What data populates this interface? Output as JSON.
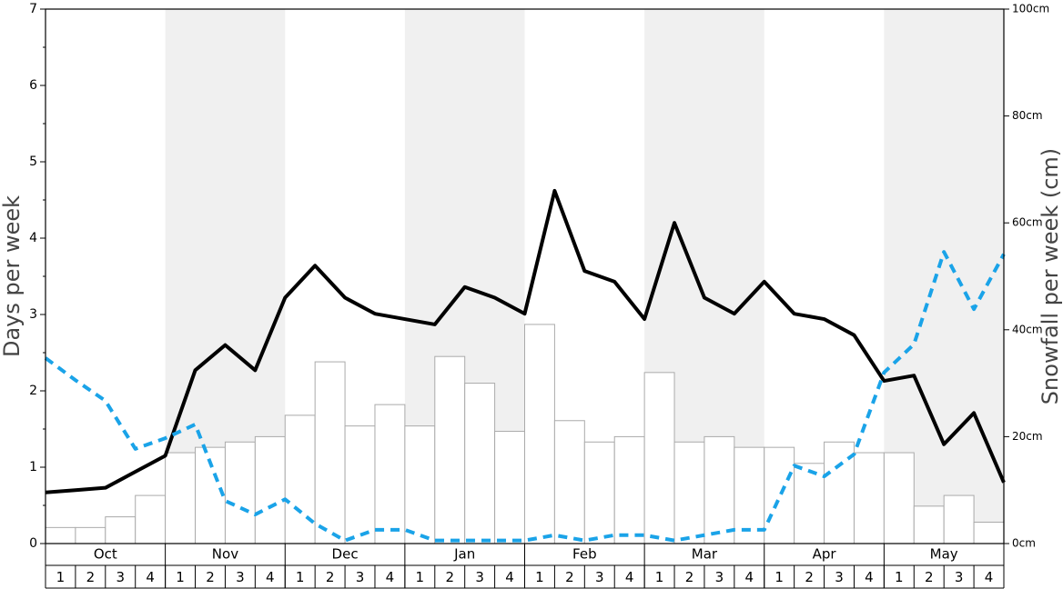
{
  "chart_data": {
    "type": "combo",
    "ylabel": "Days per week",
    "y2label": "Snowfall per week (cm)",
    "ylim": [
      0,
      7
    ],
    "yticks": [
      0,
      1,
      2,
      3,
      4,
      5,
      6,
      7
    ],
    "y2lim": [
      0,
      100
    ],
    "y2ticks": [
      {
        "value": 0,
        "label": "0cm"
      },
      {
        "value": 20,
        "label": "20cm"
      },
      {
        "value": 40,
        "label": "40cm"
      },
      {
        "value": 60,
        "label": "60cm"
      },
      {
        "value": 80,
        "label": "80cm"
      },
      {
        "value": 100,
        "label": "100cm"
      }
    ],
    "months": [
      "Oct",
      "Nov",
      "Dec",
      "Jan",
      "Feb",
      "Mar",
      "Apr",
      "May"
    ],
    "categories": [
      1,
      2,
      3,
      4,
      1,
      2,
      3,
      4,
      1,
      2,
      3,
      4,
      1,
      2,
      3,
      4,
      1,
      2,
      3,
      4,
      1,
      2,
      3,
      4,
      1,
      2,
      3,
      4,
      1,
      2,
      3,
      4
    ],
    "xlim": [
      0,
      32
    ],
    "series": [
      {
        "type": "bar",
        "axis": "y2",
        "color": "#ffffff",
        "values": [
          3,
          3,
          5,
          9,
          17,
          18,
          19,
          20,
          24,
          34,
          22,
          26,
          22,
          35,
          30,
          21,
          41,
          23,
          19,
          20,
          32,
          19,
          20,
          18,
          18,
          15,
          19,
          17,
          17,
          7,
          9,
          4
        ]
      },
      {
        "type": "line",
        "color": "#000000",
        "dashed": false,
        "x": [
          0,
          1,
          2,
          3,
          4,
          5,
          6,
          7,
          8,
          9,
          10,
          11,
          12,
          13,
          14,
          15,
          16,
          17,
          18,
          19,
          20,
          21,
          22,
          23,
          24,
          25,
          26,
          27,
          28,
          29,
          30,
          31,
          32
        ],
        "values": [
          0.67,
          0.7,
          0.73,
          0.94,
          1.15,
          2.27,
          2.6,
          2.27,
          3.22,
          3.64,
          3.22,
          3.01,
          2.94,
          2.87,
          3.36,
          3.22,
          3.01,
          4.62,
          3.57,
          3.43,
          2.94,
          4.2,
          3.22,
          3.01,
          3.43,
          3.01,
          2.94,
          2.73,
          2.13,
          2.2,
          1.3,
          1.71,
          0.8
        ]
      },
      {
        "type": "line",
        "color": "#1aa3e8",
        "dashed": true,
        "x": [
          0,
          1,
          2,
          3,
          4,
          5,
          6,
          7,
          8,
          9,
          10,
          11,
          12,
          13,
          14,
          15,
          16,
          17,
          18,
          19,
          20,
          21,
          22,
          23,
          24,
          25,
          26,
          27,
          28,
          29,
          30,
          31,
          32
        ],
        "values": [
          2.43,
          2.14,
          1.87,
          1.24,
          1.38,
          1.56,
          0.56,
          0.38,
          0.58,
          0.26,
          0.04,
          0.18,
          0.18,
          0.04,
          0.04,
          0.04,
          0.04,
          0.11,
          0.04,
          0.11,
          0.11,
          0.04,
          0.11,
          0.18,
          0.18,
          1.02,
          0.88,
          1.17,
          2.24,
          2.61,
          3.82,
          3.07,
          3.79
        ]
      }
    ]
  }
}
